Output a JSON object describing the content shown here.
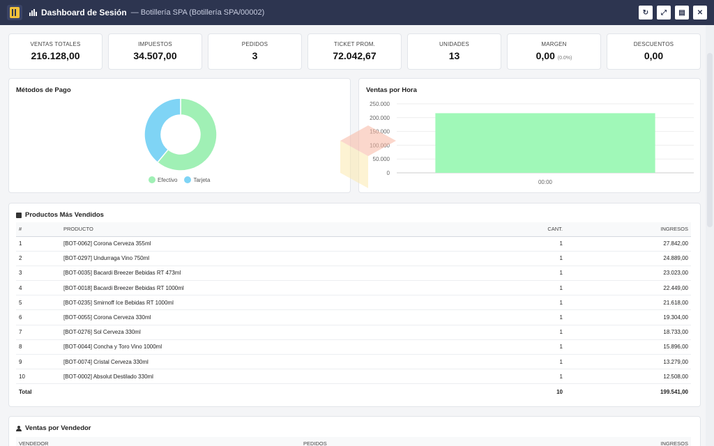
{
  "header": {
    "title": "Dashboard de Sesión",
    "subtitle": "— Botillería SPA (Botillería SPA/00002)",
    "actions": [
      {
        "icon": "refresh-icon",
        "glyph": "↻"
      },
      {
        "icon": "expand-icon",
        "glyph": "⤢"
      },
      {
        "icon": "pdf-icon",
        "glyph": "▤"
      },
      {
        "icon": "close-icon",
        "glyph": "✕"
      }
    ]
  },
  "kpis": [
    {
      "label": "VENTAS TOTALES",
      "value": "216.128,00",
      "note": ""
    },
    {
      "label": "IMPUESTOS",
      "value": "34.507,00",
      "note": ""
    },
    {
      "label": "PEDIDOS",
      "value": "3",
      "note": ""
    },
    {
      "label": "TICKET PROM.",
      "value": "72.042,67",
      "note": ""
    },
    {
      "label": "UNIDADES",
      "value": "13",
      "note": ""
    },
    {
      "label": "MARGEN",
      "value": "0,00",
      "note": "(0.0%)"
    },
    {
      "label": "DESCUENTOS",
      "value": "0,00",
      "note": ""
    }
  ],
  "payments": {
    "title": "Métodos de Pago",
    "legend": [
      {
        "label": "Efectivo",
        "color": "#a0f0b5"
      },
      {
        "label": "Tarjeta",
        "color": "#7fd4f5"
      }
    ]
  },
  "hourly": {
    "title": "Ventas por Hora"
  },
  "chart_data": [
    {
      "type": "pie",
      "title": "Métodos de Pago",
      "categories": [
        "Efectivo",
        "Tarjeta"
      ],
      "values": [
        61,
        39
      ],
      "colors": [
        "#a0f0b5",
        "#7fd4f5"
      ],
      "legend": "bottom"
    },
    {
      "type": "bar",
      "title": "Ventas por Hora",
      "categories": [
        "00:00"
      ],
      "values": [
        216128
      ],
      "ylim": [
        0,
        250000
      ],
      "yticks": [
        "0",
        "50.000",
        "100.000",
        "150.000",
        "200.000",
        "250.000"
      ],
      "grid": true,
      "color": "#a0f8b8"
    }
  ],
  "products": {
    "title": "Productos Más Vendidos",
    "columns": [
      "#",
      "PRODUCTO",
      "CANT.",
      "INGRESOS"
    ],
    "rows": [
      [
        "1",
        "[BOT-0062] Corona Cerveza 355ml",
        "1",
        "27.842,00"
      ],
      [
        "2",
        "[BOT-0297] Undurraga Vino 750ml",
        "1",
        "24.889,00"
      ],
      [
        "3",
        "[BOT-0035] Bacardi Breezer Bebidas RT 473ml",
        "1",
        "23.023,00"
      ],
      [
        "4",
        "[BOT-0018] Bacardi Breezer Bebidas RT 1000ml",
        "1",
        "22.449,00"
      ],
      [
        "5",
        "[BOT-0235] Smirnoff Ice Bebidas RT 1000ml",
        "1",
        "21.618,00"
      ],
      [
        "6",
        "[BOT-0055] Corona Cerveza 330ml",
        "1",
        "19.304,00"
      ],
      [
        "7",
        "[BOT-0276] Sol Cerveza 330ml",
        "1",
        "18.733,00"
      ],
      [
        "8",
        "[BOT-0044] Concha y Toro Vino 1000ml",
        "1",
        "15.896,00"
      ],
      [
        "9",
        "[BOT-0074] Cristal Cerveza 330ml",
        "1",
        "13.279,00"
      ],
      [
        "10",
        "[BOT-0002] Absolut Destilado 330ml",
        "1",
        "12.508,00"
      ]
    ],
    "total": {
      "label": "Total",
      "qty": "10",
      "amount": "199.541,00"
    }
  },
  "sellers": {
    "title": "Ventas por Vendedor",
    "columns": [
      "VENDEDOR",
      "PEDIDOS",
      "INGRESOS"
    ]
  }
}
